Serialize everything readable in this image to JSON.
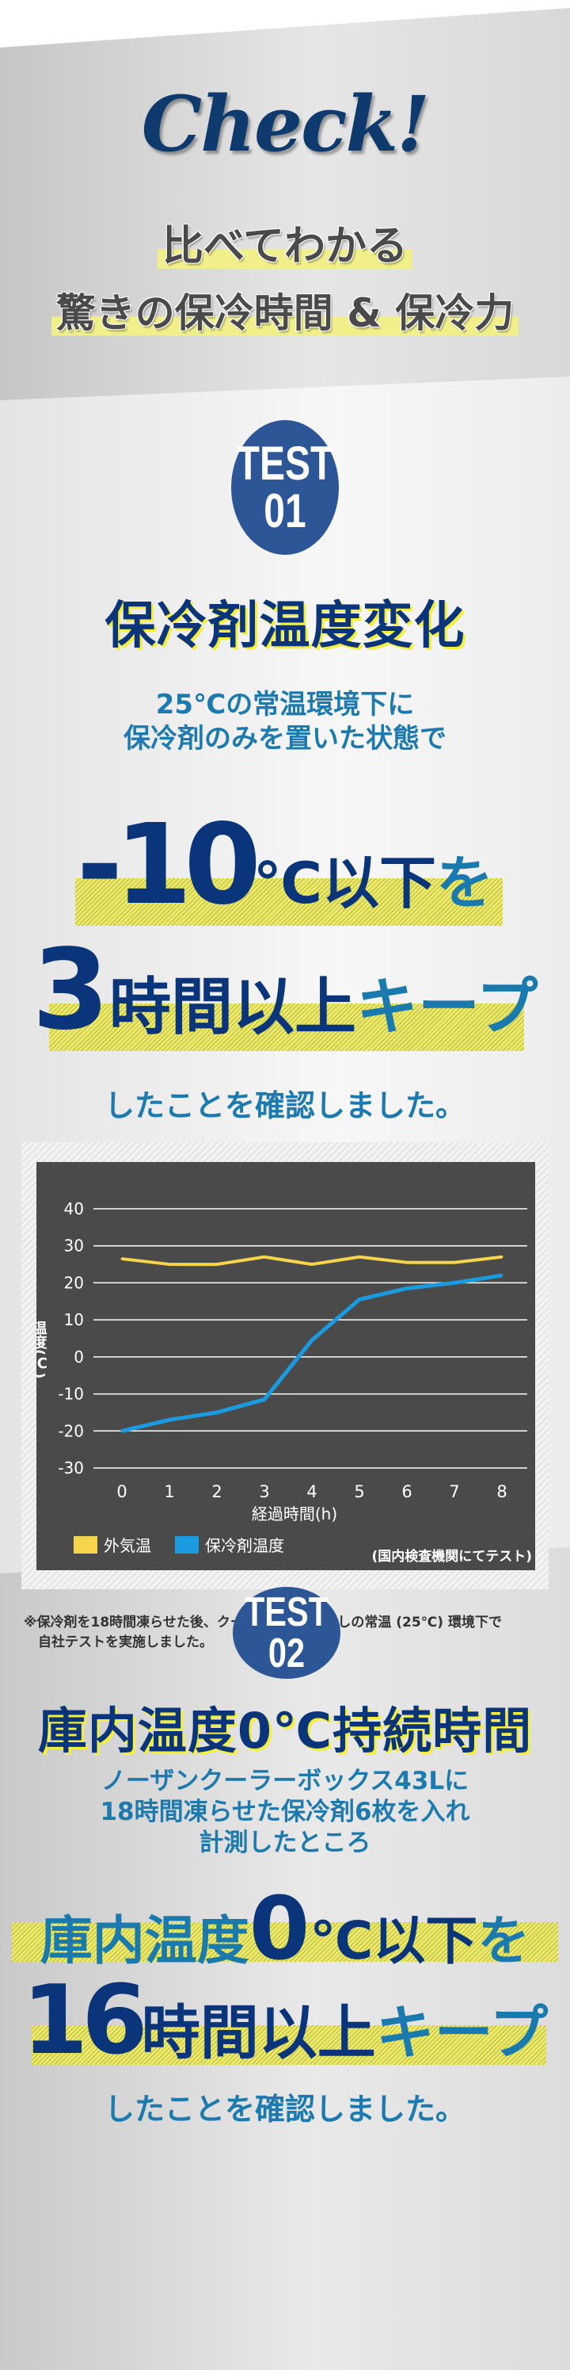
{
  "header": {
    "check": "Check!",
    "sub1": "比べてわかる",
    "sub2": "驚きの保冷時間 & 保冷力"
  },
  "test1": {
    "badge_top": "TEST",
    "badge_num": "01",
    "title": "保冷剤温度変化",
    "body": [
      "25℃の常温環境下に",
      "保冷剤のみを置いた状態で"
    ],
    "claim1": {
      "num": "-10",
      "unit": "℃以下",
      "tail": "を"
    },
    "claim2": {
      "num": "3",
      "mid": "時間以上",
      "tail": "キープ"
    },
    "confirm": "したことを確認しました。",
    "note": [
      "※保冷剤を18時間凍らせた後、クーラーボックスなしの常温 (25℃) 環境下で",
      "自社テストを実施しました。"
    ]
  },
  "test2": {
    "badge_top": "TEST",
    "badge_num": "02",
    "title": "庫内温度0℃持続時間",
    "body": [
      "ノーザンクーラーボックス43Lに",
      "18時間凍らせた保冷剤6枚を入れ",
      "計測したところ"
    ],
    "claim1": {
      "pre": "庫内温度",
      "num": "0",
      "unit": "℃以下",
      "tail": "を"
    },
    "claim2": {
      "num": "16",
      "mid": "時間以上",
      "tail": "キープ"
    },
    "confirm": "したことを確認しました。"
  },
  "chart_data": {
    "type": "line",
    "x": [
      0,
      1,
      2,
      3,
      4,
      5,
      6,
      7,
      8
    ],
    "xlabel": "経過時間(h)",
    "ylabel": "温度(℃)",
    "ylim": [
      -30,
      40
    ],
    "yticks": [
      40,
      30,
      20,
      10,
      0,
      -10,
      -20,
      -30
    ],
    "grid": true,
    "legend": "bottom-left",
    "annotation": "(国内検査機関にてテスト)",
    "series": [
      {
        "name": "外気温",
        "color": "#f7d54a",
        "values": [
          26.5,
          25,
          25,
          27,
          25,
          27,
          25.5,
          25.5,
          27
        ]
      },
      {
        "name": "保冷剤温度",
        "color": "#1a9be0",
        "values": [
          -20,
          -17,
          -15,
          -11.5,
          4.5,
          15.5,
          18.5,
          20,
          22
        ]
      }
    ]
  }
}
